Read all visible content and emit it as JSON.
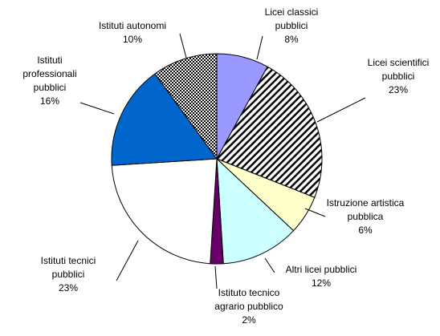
{
  "chart_data": {
    "type": "pie",
    "categories": [
      "Licei classici pubblici",
      "Licei scientifici pubblici",
      "Istruzione artistica pubblica",
      "Altri licei pubblici",
      "Istituto tecnico agrario pubblico",
      "Istituti tecnici pubblici",
      "Istituti professionali pubblici",
      "Istituti autonomi"
    ],
    "values": [
      8,
      23,
      6,
      12,
      2,
      23,
      16,
      10
    ],
    "value_labels": [
      "8%",
      "23%",
      "6%",
      "12%",
      "2%",
      "23%",
      "16%",
      "10%"
    ],
    "colors": [
      "#9999ff",
      "#6699cc",
      "#ffffcc",
      "#ccffff",
      "#660066",
      "#ffffff",
      "#0066cc",
      "#9999cc"
    ],
    "patterns": [
      null,
      "hatch",
      null,
      null,
      null,
      null,
      null,
      "check"
    ]
  }
}
